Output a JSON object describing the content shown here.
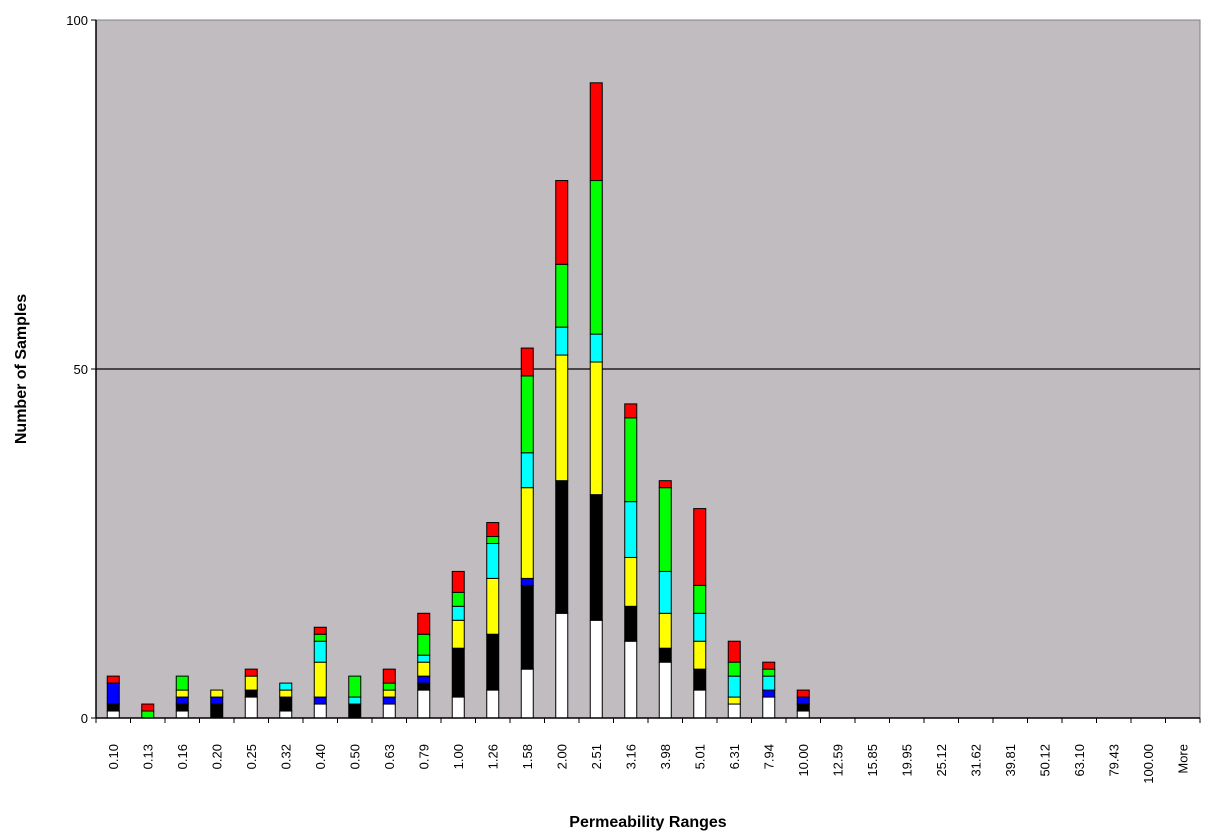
{
  "chart_data": {
    "type": "bar",
    "stacked": true,
    "xlabel": "Permeability Ranges",
    "ylabel": "Number of Samples",
    "ylim": [
      0,
      100
    ],
    "yticks": [
      "0",
      "50",
      "100"
    ],
    "grid": "horizontal at 50",
    "legend": "none",
    "colors": {
      "plot_background": "#c0bcc0",
      "axis_line": "#000000"
    },
    "categories": [
      "0.10",
      "0.13",
      "0.16",
      "0.20",
      "0.25",
      "0.32",
      "0.40",
      "0.50",
      "0.63",
      "0.79",
      "1.00",
      "1.26",
      "1.58",
      "2.00",
      "2.51",
      "3.16",
      "3.98",
      "5.01",
      "6.31",
      "7.94",
      "10.00",
      "12.59",
      "15.85",
      "19.95",
      "25.12",
      "31.62",
      "39.81",
      "50.12",
      "63.10",
      "79.43",
      "100.00",
      "More"
    ],
    "series": [
      {
        "color": "#ffffff",
        "values": [
          1,
          0,
          1,
          0,
          3,
          1,
          2,
          0,
          2,
          4,
          3,
          4,
          7,
          15,
          14,
          11,
          8,
          4,
          2,
          3,
          1,
          0,
          0,
          0,
          0,
          0,
          0,
          0,
          0,
          0,
          0,
          0
        ]
      },
      {
        "color": "#000000",
        "values": [
          1,
          0,
          1,
          2,
          1,
          2,
          0,
          2,
          0,
          1,
          7,
          8,
          12,
          19,
          18,
          5,
          2,
          3,
          0,
          0,
          1,
          0,
          0,
          0,
          0,
          0,
          0,
          0,
          0,
          0,
          0,
          0
        ]
      },
      {
        "color": "#0000ff",
        "values": [
          3,
          0,
          1,
          1,
          0,
          0,
          1,
          0,
          1,
          1,
          0,
          0,
          1,
          0,
          0,
          0,
          0,
          0,
          0,
          1,
          1,
          0,
          0,
          0,
          0,
          0,
          0,
          0,
          0,
          0,
          0,
          0
        ]
      },
      {
        "color": "#ffff00",
        "values": [
          0,
          0,
          1,
          1,
          2,
          1,
          5,
          0,
          1,
          2,
          4,
          8,
          13,
          18,
          19,
          7,
          5,
          4,
          1,
          0,
          0,
          0,
          0,
          0,
          0,
          0,
          0,
          0,
          0,
          0,
          0,
          0
        ]
      },
      {
        "color": "#00ffff",
        "values": [
          0,
          0,
          0,
          0,
          0,
          1,
          3,
          1,
          0,
          1,
          2,
          5,
          5,
          4,
          4,
          8,
          6,
          4,
          3,
          2,
          0,
          0,
          0,
          0,
          0,
          0,
          0,
          0,
          0,
          0,
          0,
          0
        ]
      },
      {
        "color": "#00ff00",
        "values": [
          0,
          1,
          2,
          0,
          0,
          0,
          1,
          3,
          1,
          3,
          2,
          1,
          11,
          9,
          22,
          12,
          12,
          4,
          2,
          1,
          0,
          0,
          0,
          0,
          0,
          0,
          0,
          0,
          0,
          0,
          0,
          0
        ]
      },
      {
        "color": "#ff0000",
        "values": [
          1,
          1,
          0,
          0,
          1,
          0,
          1,
          0,
          2,
          3,
          3,
          2,
          4,
          12,
          14,
          2,
          1,
          11,
          3,
          1,
          1,
          0,
          0,
          0,
          0,
          0,
          0,
          0,
          0,
          0,
          0,
          0
        ]
      }
    ]
  }
}
